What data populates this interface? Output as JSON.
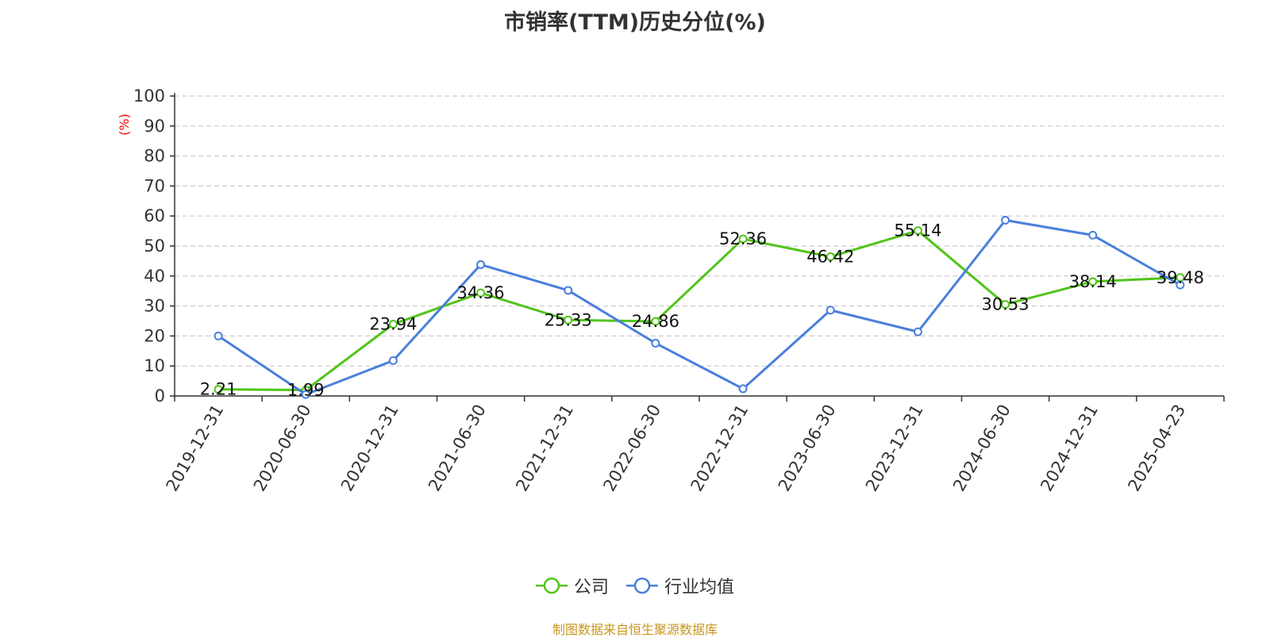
{
  "chart_data": {
    "type": "line",
    "title": "市销率(TTM)历史分位(%)",
    "ylabel": "(%)",
    "ylim": [
      0,
      100
    ],
    "yticks": [
      0,
      10,
      20,
      30,
      40,
      50,
      60,
      70,
      80,
      90,
      100
    ],
    "grid": true,
    "legend_position": "bottom",
    "categories": [
      "2019-12-31",
      "2020-06-30",
      "2020-12-31",
      "2021-06-30",
      "2021-12-31",
      "2022-06-30",
      "2022-12-31",
      "2023-06-30",
      "2023-12-31",
      "2024-06-30",
      "2024-12-31",
      "2025-04-23"
    ],
    "series": [
      {
        "name": "公司",
        "color": "#52c41a",
        "show_labels": true,
        "values": [
          2.21,
          1.99,
          23.94,
          34.36,
          25.33,
          24.86,
          52.36,
          46.42,
          55.14,
          30.53,
          38.14,
          39.48
        ],
        "labels": [
          "2.21",
          "1.99",
          "23.94",
          "34.36",
          "25.33",
          "24.86",
          "52.36",
          "46.42",
          "55.14",
          "30.53",
          "38.14",
          "39.48"
        ]
      },
      {
        "name": "行业均值",
        "color": "#4a7fdc",
        "show_labels": false,
        "values": [
          20.0,
          0.5,
          11.8,
          43.8,
          35.2,
          17.6,
          2.4,
          28.6,
          21.4,
          58.6,
          53.6,
          37.0
        ]
      }
    ]
  },
  "source_text": "制图数据来自恒生聚源数据库",
  "colors": {
    "axis": "#333333",
    "grid": "#cccccc",
    "ylabel": "#ff0000",
    "source": "#c8961e"
  }
}
